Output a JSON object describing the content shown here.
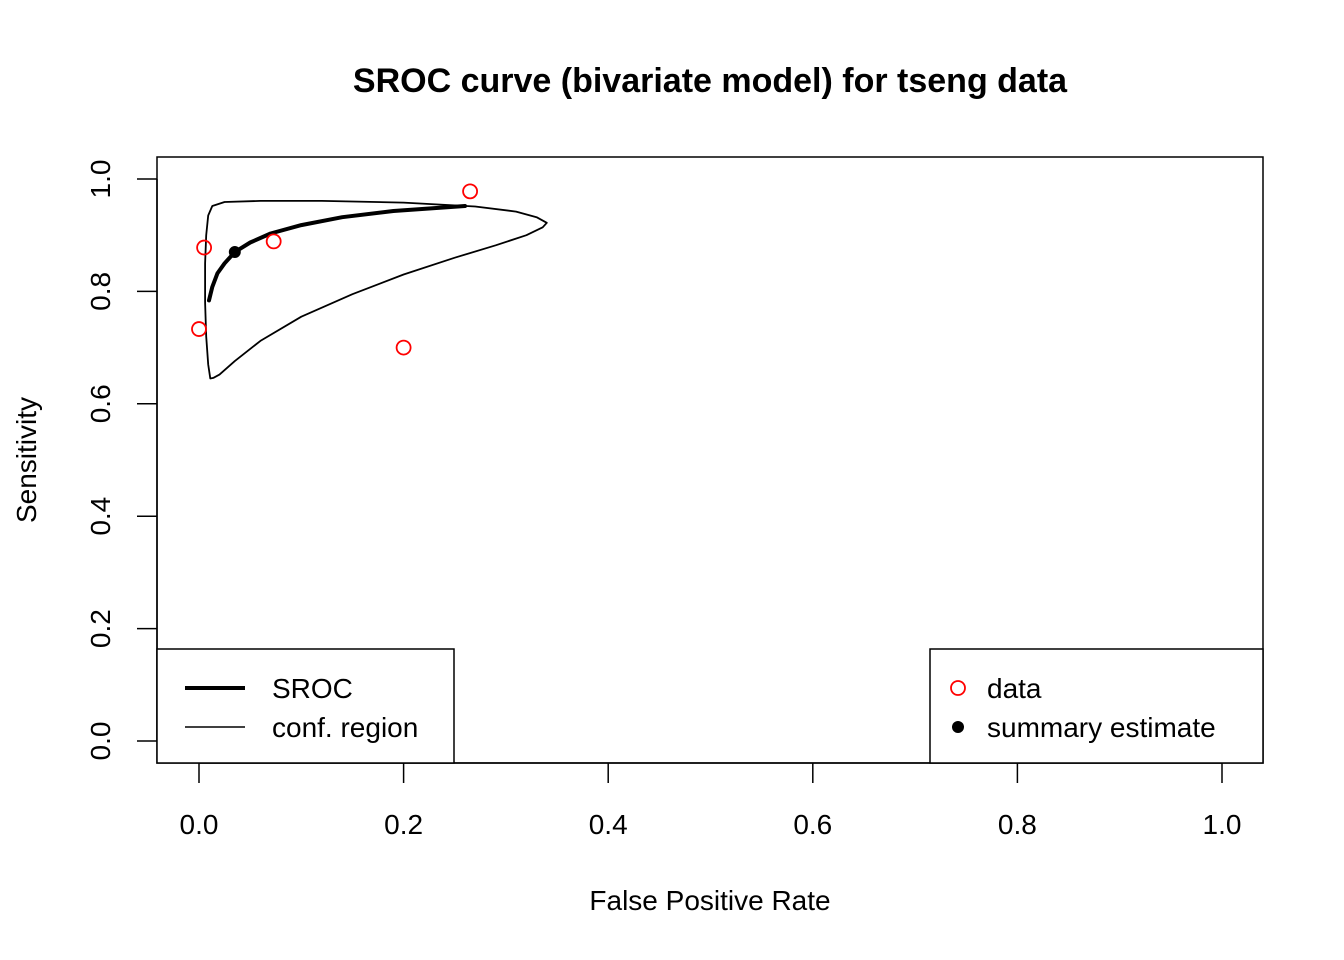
{
  "chart_data": {
    "type": "scatter",
    "title": "SROC curve (bivariate model) for tseng data",
    "xlabel": "False Positive Rate",
    "ylabel": "Sensitivity",
    "xlim": [
      0,
      1
    ],
    "ylim": [
      0,
      1
    ],
    "xticks": [
      "0.0",
      "0.2",
      "0.4",
      "0.6",
      "0.8",
      "1.0"
    ],
    "yticks": [
      "0.0",
      "0.2",
      "0.4",
      "0.6",
      "0.8",
      "1.0"
    ],
    "grid": false,
    "colors": {
      "data": "#ff0000",
      "summary": "#000000",
      "sroc": "#000000",
      "region": "#000000"
    },
    "series": [
      {
        "name": "SROC",
        "type": "line",
        "x": [
          0.0098,
          0.013,
          0.018,
          0.025,
          0.035,
          0.05,
          0.07,
          0.1,
          0.14,
          0.19,
          0.26
        ],
        "y": [
          0.784,
          0.808,
          0.832,
          0.85,
          0.87,
          0.887,
          0.903,
          0.918,
          0.932,
          0.943,
          0.952
        ]
      },
      {
        "name": "conf. region",
        "type": "line",
        "x": [
          0.011,
          0.009,
          0.007,
          0.006,
          0.006,
          0.007,
          0.009,
          0.013,
          0.025,
          0.06,
          0.12,
          0.2,
          0.27,
          0.31,
          0.33,
          0.34,
          0.336,
          0.32,
          0.29,
          0.25,
          0.2,
          0.15,
          0.1,
          0.06,
          0.035,
          0.02,
          0.014,
          0.011
        ],
        "y": [
          0.645,
          0.67,
          0.72,
          0.78,
          0.85,
          0.9,
          0.935,
          0.952,
          0.959,
          0.961,
          0.961,
          0.958,
          0.951,
          0.942,
          0.932,
          0.922,
          0.914,
          0.9,
          0.882,
          0.86,
          0.83,
          0.795,
          0.755,
          0.712,
          0.676,
          0.652,
          0.646,
          0.645
        ]
      },
      {
        "name": "data",
        "type": "scatter",
        "x": [
          0.265,
          0.005,
          0.073,
          0.0,
          0.2
        ],
        "y": [
          0.978,
          0.878,
          0.889,
          0.733,
          0.7
        ]
      },
      {
        "name": "summary estimate",
        "type": "scatter",
        "x": [
          0.035
        ],
        "y": [
          0.87
        ]
      }
    ],
    "legends": {
      "left": {
        "position": "bottom-left",
        "items": [
          "SROC",
          "conf. region"
        ]
      },
      "right": {
        "position": "bottom-right",
        "items": [
          "data",
          "summary estimate"
        ]
      }
    }
  }
}
